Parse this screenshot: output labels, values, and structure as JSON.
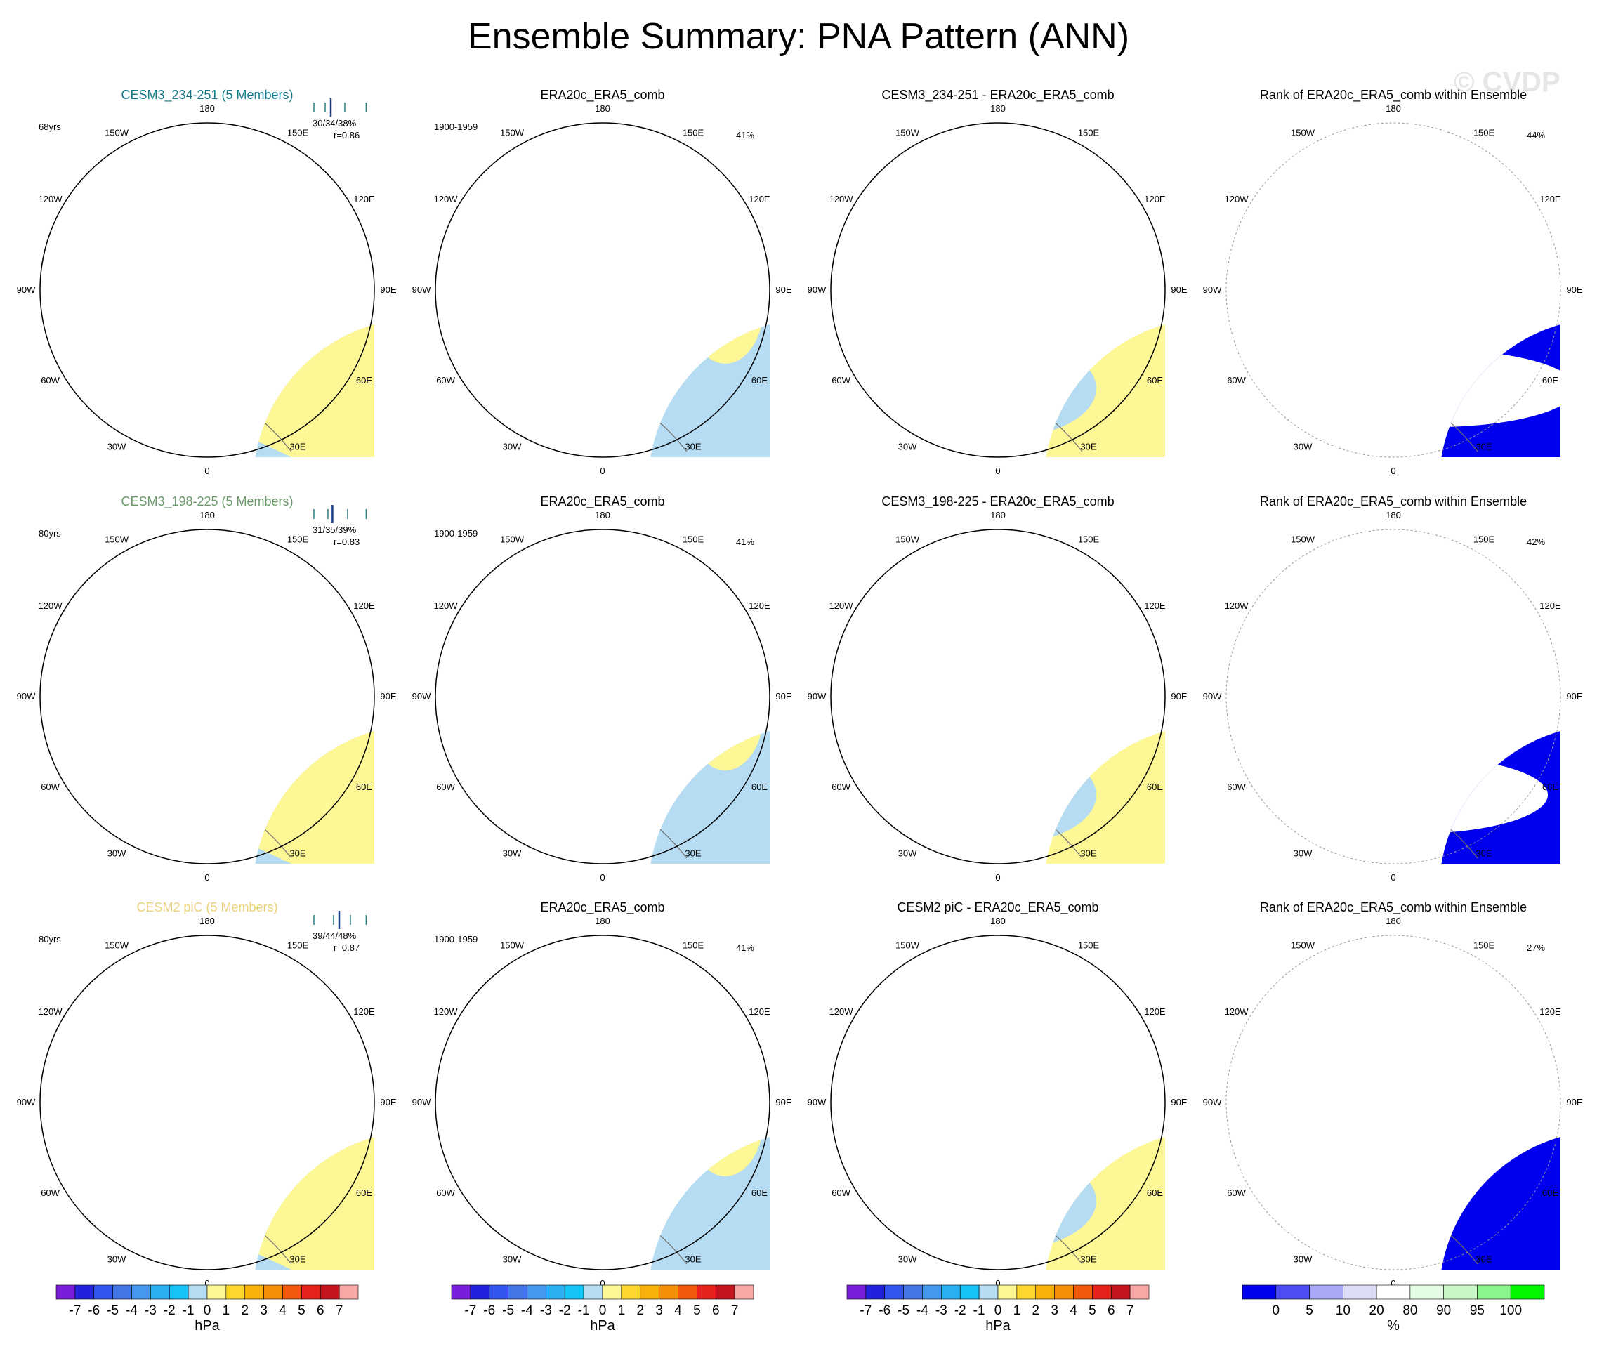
{
  "title": "Ensemble Summary: PNA Pattern (ANN)",
  "watermark": "© CVDP",
  "colors": {
    "pos1": "#fef796",
    "pos2": "#fdd72d",
    "neg1": "#b5dcf2",
    "neg2": "#65bdef",
    "neg3": "#1eb4f5",
    "rank_low": "#0000ee",
    "rank_white": "#ffffff",
    "rank_light": "#e3fce3",
    "rank_high": "#00f700",
    "coast": "#6d6d6d",
    "title_row1": "#147a8a",
    "title_row2": "#6e9a6e",
    "title_row3": "#ead27a"
  },
  "longitude_labels": [
    "180",
    "150E",
    "120E",
    "90E",
    "60E",
    "30E",
    "0",
    "30W",
    "60W",
    "90W",
    "120W",
    "150W"
  ],
  "rows": [
    {
      "ensemble": {
        "title": "CESM3_234-251 (5 Members)",
        "years": "68yrs",
        "pct": "30/34/38%",
        "r": "r=0.86",
        "whisker": [
          0.05,
          0.25,
          0.35,
          0.6,
          0.98
        ]
      },
      "obs": {
        "title": "ERA20c_ERA5_comb",
        "period": "1900-1959",
        "pct": "41%"
      },
      "diff": {
        "title": "CESM3_234-251 - ERA20c_ERA5_comb"
      },
      "rank": {
        "title": "Rank of ERA20c_ERA5_comb within Ensemble",
        "pct": "44%"
      }
    },
    {
      "ensemble": {
        "title": "CESM3_198-225 (5 Members)",
        "years": "80yrs",
        "pct": "31/35/39%",
        "r": "r=0.83",
        "whisker": [
          0.05,
          0.3,
          0.38,
          0.65,
          0.98
        ]
      },
      "obs": {
        "title": "ERA20c_ERA5_comb",
        "period": "1900-1959",
        "pct": "41%"
      },
      "diff": {
        "title": "CESM3_198-225 - ERA20c_ERA5_comb"
      },
      "rank": {
        "title": "Rank of ERA20c_ERA5_comb within Ensemble",
        "pct": "42%"
      }
    },
    {
      "ensemble": {
        "title": "CESM2 piC (5 Members)",
        "years": "80yrs",
        "pct": "39/44/48%",
        "r": "r=0.87",
        "whisker": [
          0.05,
          0.4,
          0.5,
          0.7,
          0.98
        ]
      },
      "obs": {
        "title": "ERA20c_ERA5_comb",
        "period": "1900-1959",
        "pct": "41%"
      },
      "diff": {
        "title": "CESM2 piC - ERA20c_ERA5_comb"
      },
      "rank": {
        "title": "Rank of ERA20c_ERA5_comb within Ensemble",
        "pct": "27%"
      }
    }
  ],
  "colorbars": [
    {
      "unit": "hPa",
      "ticks": [
        "-7",
        "-6",
        "-5",
        "-4",
        "-3",
        "-2",
        "-1",
        "0",
        "1",
        "2",
        "3",
        "4",
        "5",
        "6",
        "7"
      ],
      "colors": [
        "#7a1fd9",
        "#2222dd",
        "#3355ee",
        "#4477e6",
        "#4499ee",
        "#2ab0f2",
        "#16c3f8",
        "#b5dcf2",
        "#fef796",
        "#fdd72d",
        "#f9b20c",
        "#f48f0a",
        "#f15a0c",
        "#e6231b",
        "#c4161c",
        "#f8a7a7"
      ]
    },
    {
      "unit": "hPa",
      "ticks": [
        "-7",
        "-6",
        "-5",
        "-4",
        "-3",
        "-2",
        "-1",
        "0",
        "1",
        "2",
        "3",
        "4",
        "5",
        "6",
        "7"
      ],
      "colors": [
        "#7a1fd9",
        "#2222dd",
        "#3355ee",
        "#4477e6",
        "#4499ee",
        "#2ab0f2",
        "#16c3f8",
        "#b5dcf2",
        "#fef796",
        "#fdd72d",
        "#f9b20c",
        "#f48f0a",
        "#f15a0c",
        "#e6231b",
        "#c4161c",
        "#f8a7a7"
      ]
    },
    {
      "unit": "hPa",
      "ticks": [
        "-7",
        "-6",
        "-5",
        "-4",
        "-3",
        "-2",
        "-1",
        "0",
        "1",
        "2",
        "3",
        "4",
        "5",
        "6",
        "7"
      ],
      "colors": [
        "#7a1fd9",
        "#2222dd",
        "#3355ee",
        "#4477e6",
        "#4499ee",
        "#2ab0f2",
        "#16c3f8",
        "#b5dcf2",
        "#fef796",
        "#fdd72d",
        "#f9b20c",
        "#f48f0a",
        "#f15a0c",
        "#e6231b",
        "#c4161c",
        "#f8a7a7"
      ]
    },
    {
      "unit": "%",
      "ticks": [
        "0",
        "5",
        "10",
        "20",
        "80",
        "90",
        "95",
        "100"
      ],
      "colors": [
        "#0000ee",
        "#4d4df2",
        "#a8a8f4",
        "#dcdcf6",
        "#ffffff",
        "#e3fce3",
        "#c8f8c8",
        "#8bf48b",
        "#00f700"
      ]
    }
  ],
  "chart_data": [
    {
      "type": "heatmap",
      "title": "Ensemble Summary: PNA Pattern (ANN)",
      "projection": "north polar stereographic",
      "unit": "hPa",
      "contour_levels": [
        -7,
        -6,
        -5,
        -4,
        -3,
        -2,
        -1,
        0,
        1,
        2,
        3,
        4,
        5,
        6,
        7
      ],
      "panels": [
        "CESM3_234-251 (5 Members)",
        "ERA20c_ERA5_comb",
        "CESM3_234-251 - ERA20c_ERA5_comb",
        "CESM3_198-225 (5 Members)",
        "ERA20c_ERA5_comb",
        "CESM3_198-225 - ERA20c_ERA5_comb",
        "CESM2 piC (5 Members)",
        "ERA20c_ERA5_comb",
        "CESM2 piC - ERA20c_ERA5_comb"
      ]
    },
    {
      "type": "heatmap",
      "title": "Rank of ERA20c_ERA5_comb within Ensemble",
      "unit": "%",
      "levels": [
        0,
        5,
        10,
        20,
        80,
        90,
        95,
        100
      ],
      "panel_percent": [
        44,
        42,
        27
      ]
    }
  ]
}
